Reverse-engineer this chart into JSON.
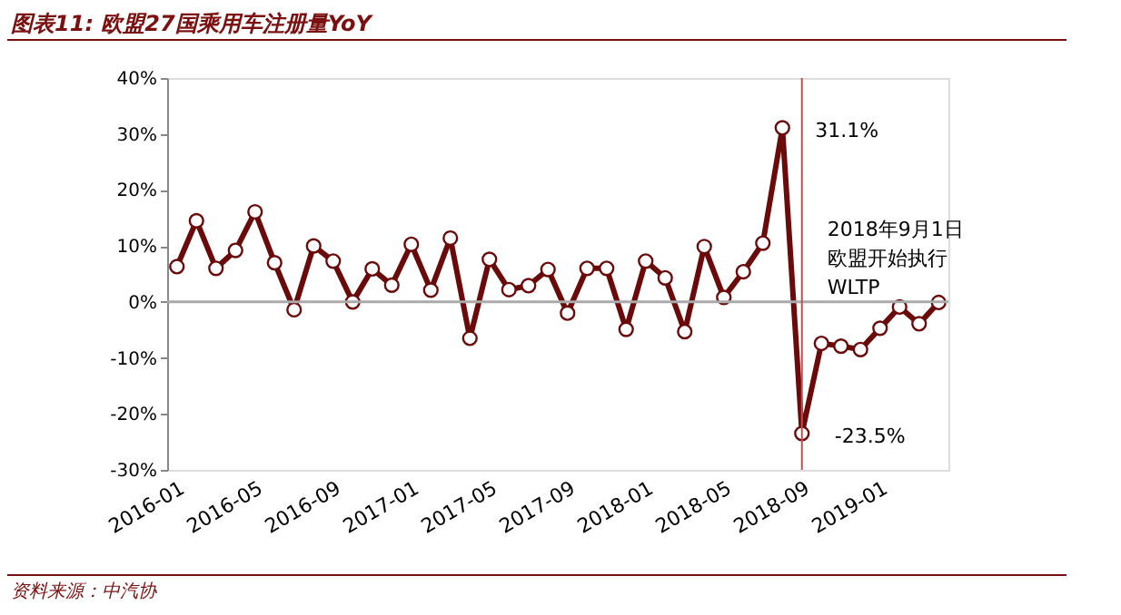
{
  "chart_data": {
    "type": "line",
    "title": "图表11: 欧盟27国乘用车注册量YoY",
    "categories": [
      "2016-01",
      null,
      null,
      null,
      "2016-05",
      null,
      null,
      null,
      "2016-09",
      null,
      null,
      null,
      "2017-01",
      null,
      null,
      null,
      "2017-05",
      null,
      null,
      null,
      "2017-09",
      null,
      null,
      null,
      "2018-01",
      null,
      null,
      null,
      "2018-05",
      null,
      null,
      null,
      "2018-09",
      null,
      null,
      null,
      "2019-01",
      null,
      null,
      null
    ],
    "series": [
      {
        "color": "#6b0a0a",
        "values": [
          6.3,
          14.5,
          6.0,
          9.2,
          16.1,
          7.0,
          -1.4,
          10.0,
          7.3,
          0,
          5.9,
          3.0,
          10.3,
          2.1,
          11.4,
          -6.5,
          7.6,
          2.2,
          2.9,
          5.8,
          -2.0,
          6.0,
          6.0,
          -4.9,
          7.3,
          4.3,
          -5.3,
          9.9,
          0.8,
          5.4,
          10.5,
          31.1,
          -23.5,
          -7.4,
          -7.9,
          -8.5,
          -4.7,
          -0.9,
          -3.9,
          -0.1
        ],
        "value_labels": [
          null,
          null,
          null,
          null,
          null,
          null,
          null,
          null,
          null,
          null,
          null,
          null,
          null,
          null,
          null,
          null,
          null,
          null,
          null,
          null,
          null,
          null,
          null,
          null,
          null,
          null,
          null,
          null,
          null,
          null,
          null,
          "31.1%",
          "-23.5%",
          null,
          null,
          null,
          null,
          null,
          null,
          null
        ]
      }
    ],
    "ylim": [
      -30,
      40
    ],
    "yticks": [
      {
        "value": -30,
        "label": "-30%"
      },
      {
        "value": -20,
        "label": "-20%"
      },
      {
        "value": -10,
        "label": "-10%"
      },
      {
        "value": 0,
        "label": "0%"
      },
      {
        "value": 10,
        "label": "10%"
      },
      {
        "value": 20,
        "label": "20%"
      },
      {
        "value": 30,
        "label": "30%"
      },
      {
        "value": 40,
        "label": "40%"
      }
    ],
    "ref_lines": [
      {
        "axis": "y",
        "value": 0,
        "color": "#aaaaaa"
      },
      {
        "axis": "x",
        "value": "2018-09",
        "label": "2018年9月1日欧盟开始执行WLTP",
        "color": "#c0504d"
      }
    ],
    "annotations": [
      "资料来源：中汽协"
    ],
    "marker": "circle",
    "grid": false
  }
}
